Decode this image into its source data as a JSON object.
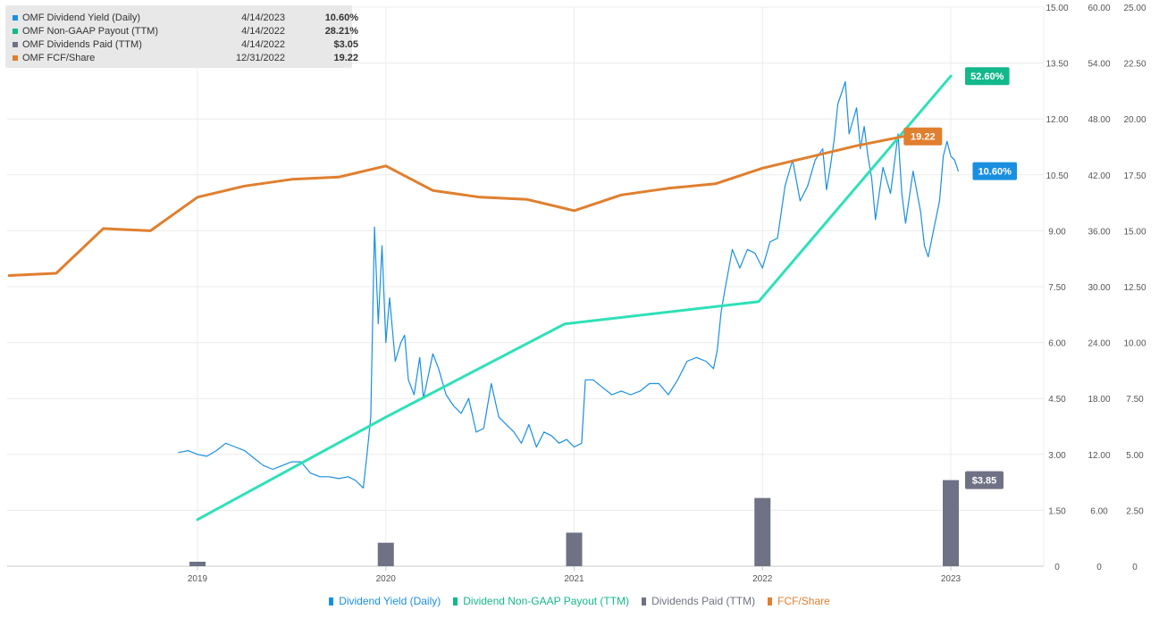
{
  "tooltip": {
    "rows": [
      {
        "label": "OMF Dividend Yield (Daily)",
        "date": "4/14/2023",
        "value": "10.60%",
        "color": "#1a8fe0"
      },
      {
        "label": "OMF Non-GAAP Payout (TTM)",
        "date": "4/14/2022",
        "value": "28.21%",
        "color": "#13b88b"
      },
      {
        "label": "OMF Dividends Paid (TTM)",
        "date": "4/14/2022",
        "value": "$3.05",
        "color": "#6f7285"
      },
      {
        "label": "OMF FCF/Share",
        "date": "12/31/2022",
        "value": "19.22",
        "color": "#e07f2f"
      }
    ]
  },
  "legend": [
    {
      "label": "Dividend Yield (Daily)",
      "color": "#1a8fe0"
    },
    {
      "label": "Dividend Non-GAAP Payout (TTM)",
      "color": "#13b88b"
    },
    {
      "label": "Dividends Paid (TTM)",
      "color": "#6f7285"
    },
    {
      "label": "FCF/Share",
      "color": "#e07f2f"
    }
  ],
  "chart_data": {
    "type": "line",
    "x_ticks": [
      "2019",
      "2020",
      "2021",
      "2022",
      "2023"
    ],
    "axes": {
      "yield": {
        "ticks": [
          "0",
          "1.50",
          "3.00",
          "4.50",
          "6.00",
          "7.50",
          "9.00",
          "10.50",
          "12.00",
          "13.50",
          "15.00"
        ],
        "max": 15
      },
      "payout": {
        "ticks": [
          "0",
          "6.00",
          "12.00",
          "18.00",
          "24.00",
          "30.00",
          "36.00",
          "42.00",
          "48.00",
          "54.00",
          "60.00"
        ],
        "max": 60
      },
      "fcf": {
        "ticks": [
          "0",
          "2.50",
          "5.00",
          "7.50",
          "10.00",
          "12.50",
          "15.00",
          "17.50",
          "20.00",
          "22.50",
          "25.00"
        ],
        "max": 25
      }
    },
    "grid": true,
    "legend_position": "bottom",
    "series": [
      {
        "key": "yield",
        "axis": "yield",
        "color": "#1a8fe0",
        "points": [
          [
            2018.9,
            3.05
          ],
          [
            2018.95,
            3.1
          ],
          [
            2019.0,
            3.0
          ],
          [
            2019.05,
            2.95
          ],
          [
            2019.1,
            3.1
          ],
          [
            2019.15,
            3.3
          ],
          [
            2019.2,
            3.2
          ],
          [
            2019.25,
            3.1
          ],
          [
            2019.3,
            2.9
          ],
          [
            2019.35,
            2.7
          ],
          [
            2019.4,
            2.6
          ],
          [
            2019.45,
            2.7
          ],
          [
            2019.5,
            2.8
          ],
          [
            2019.55,
            2.8
          ],
          [
            2019.6,
            2.5
          ],
          [
            2019.65,
            2.4
          ],
          [
            2019.7,
            2.4
          ],
          [
            2019.75,
            2.35
          ],
          [
            2019.8,
            2.4
          ],
          [
            2019.84,
            2.3
          ],
          [
            2019.86,
            2.2
          ],
          [
            2019.88,
            2.1
          ],
          [
            2019.9,
            3.0
          ],
          [
            2019.92,
            4.0
          ],
          [
            2019.94,
            9.1
          ],
          [
            2019.96,
            6.5
          ],
          [
            2019.98,
            8.6
          ],
          [
            2020.0,
            6.0
          ],
          [
            2020.02,
            7.2
          ],
          [
            2020.05,
            5.5
          ],
          [
            2020.08,
            6.0
          ],
          [
            2020.1,
            6.2
          ],
          [
            2020.12,
            5.0
          ],
          [
            2020.15,
            4.6
          ],
          [
            2020.18,
            5.6
          ],
          [
            2020.2,
            4.5
          ],
          [
            2020.25,
            5.7
          ],
          [
            2020.28,
            5.3
          ],
          [
            2020.32,
            4.6
          ],
          [
            2020.36,
            4.3
          ],
          [
            2020.4,
            4.1
          ],
          [
            2020.44,
            4.5
          ],
          [
            2020.48,
            3.6
          ],
          [
            2020.52,
            3.7
          ],
          [
            2020.56,
            4.9
          ],
          [
            2020.6,
            4.0
          ],
          [
            2020.64,
            3.8
          ],
          [
            2020.68,
            3.6
          ],
          [
            2020.72,
            3.3
          ],
          [
            2020.76,
            3.8
          ],
          [
            2020.8,
            3.2
          ],
          [
            2020.84,
            3.6
          ],
          [
            2020.88,
            3.5
          ],
          [
            2020.92,
            3.3
          ],
          [
            2020.96,
            3.4
          ],
          [
            2021.0,
            3.2
          ],
          [
            2021.04,
            3.3
          ],
          [
            2021.06,
            5.0
          ],
          [
            2021.1,
            5.0
          ],
          [
            2021.15,
            4.8
          ],
          [
            2021.2,
            4.6
          ],
          [
            2021.25,
            4.7
          ],
          [
            2021.3,
            4.6
          ],
          [
            2021.35,
            4.7
          ],
          [
            2021.4,
            4.9
          ],
          [
            2021.45,
            4.9
          ],
          [
            2021.5,
            4.6
          ],
          [
            2021.55,
            5.0
          ],
          [
            2021.6,
            5.5
          ],
          [
            2021.65,
            5.6
          ],
          [
            2021.7,
            5.5
          ],
          [
            2021.74,
            5.3
          ],
          [
            2021.76,
            5.8
          ],
          [
            2021.78,
            6.8
          ],
          [
            2021.8,
            7.4
          ],
          [
            2021.84,
            8.5
          ],
          [
            2021.88,
            8.0
          ],
          [
            2021.92,
            8.5
          ],
          [
            2021.96,
            8.4
          ],
          [
            2022.0,
            8.0
          ],
          [
            2022.04,
            8.7
          ],
          [
            2022.08,
            8.8
          ],
          [
            2022.12,
            10.2
          ],
          [
            2022.16,
            10.9
          ],
          [
            2022.2,
            9.8
          ],
          [
            2022.24,
            10.2
          ],
          [
            2022.28,
            10.9
          ],
          [
            2022.32,
            11.2
          ],
          [
            2022.34,
            10.1
          ],
          [
            2022.36,
            10.7
          ],
          [
            2022.38,
            11.4
          ],
          [
            2022.4,
            12.4
          ],
          [
            2022.44,
            13.0
          ],
          [
            2022.46,
            11.6
          ],
          [
            2022.5,
            12.3
          ],
          [
            2022.52,
            11.2
          ],
          [
            2022.54,
            11.8
          ],
          [
            2022.56,
            11.0
          ],
          [
            2022.58,
            10.4
          ],
          [
            2022.6,
            9.3
          ],
          [
            2022.64,
            10.7
          ],
          [
            2022.68,
            10.0
          ],
          [
            2022.72,
            11.6
          ],
          [
            2022.74,
            10.0
          ],
          [
            2022.76,
            9.2
          ],
          [
            2022.8,
            10.6
          ],
          [
            2022.84,
            9.5
          ],
          [
            2022.86,
            8.6
          ],
          [
            2022.88,
            8.3
          ],
          [
            2022.9,
            8.8
          ],
          [
            2022.94,
            9.8
          ],
          [
            2022.96,
            11.0
          ],
          [
            2022.98,
            11.4
          ],
          [
            2023.0,
            11.0
          ],
          [
            2023.02,
            10.9
          ],
          [
            2023.04,
            10.6
          ]
        ]
      },
      {
        "key": "payout",
        "axis": "payout",
        "color": "#2fe0b8",
        "points": [
          [
            2019.0,
            5.0
          ],
          [
            2020.0,
            16.0
          ],
          [
            2020.95,
            26.0
          ],
          [
            2021.98,
            28.4
          ],
          [
            2023.0,
            52.6
          ]
        ]
      },
      {
        "key": "fcf",
        "axis": "fcf",
        "color": "#e07f2f",
        "points": [
          [
            2018.0,
            13.0
          ],
          [
            2018.25,
            13.1
          ],
          [
            2018.5,
            15.1
          ],
          [
            2018.75,
            15.0
          ],
          [
            2019.0,
            16.5
          ],
          [
            2019.25,
            17.0
          ],
          [
            2019.5,
            17.3
          ],
          [
            2019.75,
            17.4
          ],
          [
            2020.0,
            17.9
          ],
          [
            2020.25,
            16.8
          ],
          [
            2020.5,
            16.5
          ],
          [
            2020.75,
            16.4
          ],
          [
            2021.0,
            15.9
          ],
          [
            2021.25,
            16.6
          ],
          [
            2021.5,
            16.9
          ],
          [
            2021.75,
            17.1
          ],
          [
            2022.0,
            17.8
          ],
          [
            2022.25,
            18.3
          ],
          [
            2022.5,
            18.8
          ],
          [
            2022.75,
            19.22
          ]
        ]
      },
      {
        "key": "dividends",
        "axis": "fcf",
        "color": "#6f7285",
        "bars": [
          [
            2019.0,
            0.2
          ],
          [
            2020.0,
            1.05
          ],
          [
            2021.0,
            1.5
          ],
          [
            2022.0,
            3.05
          ],
          [
            2023.0,
            3.85
          ]
        ]
      }
    ],
    "end_labels": [
      {
        "text": "52.60%",
        "color": "#13b88b",
        "series": "payout",
        "axis": "payout",
        "value": 52.6
      },
      {
        "text": "19.22",
        "color": "#e07f2f",
        "series": "fcf",
        "axis": "fcf",
        "value": 19.22
      },
      {
        "text": "10.60%",
        "color": "#1a8fe0",
        "series": "yield",
        "axis": "yield",
        "value": 10.6
      },
      {
        "text": "$3.85",
        "color": "#6f7285",
        "series": "dividends",
        "axis": "fcf",
        "value": 3.85
      }
    ]
  }
}
